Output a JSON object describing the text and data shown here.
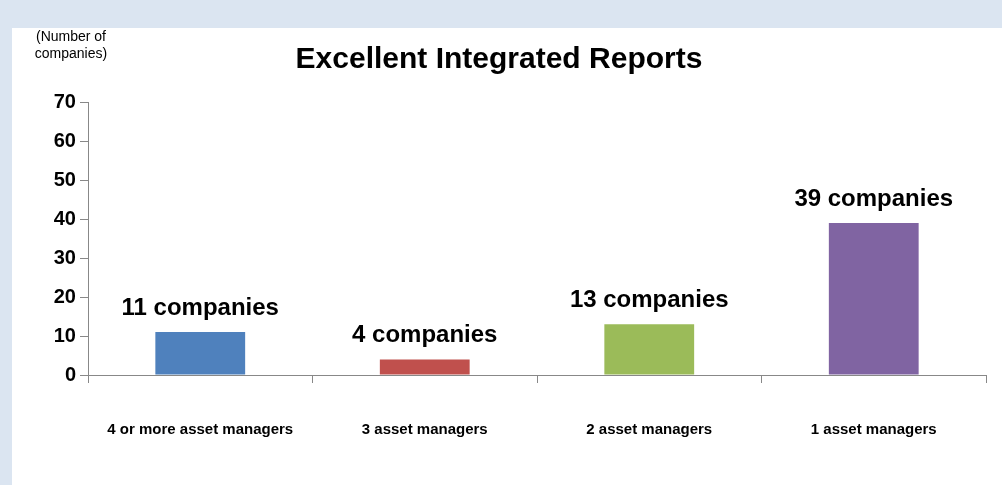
{
  "chart_data": {
    "type": "bar",
    "title": "Excellent Integrated Reports",
    "ylabel": "(Number of companies)",
    "categories": [
      "4 or more asset managers",
      "3 asset managers",
      "2 asset managers",
      "1 asset managers"
    ],
    "values": [
      11,
      4,
      13,
      39
    ],
    "colors": [
      "#4f81bd",
      "#c0504d",
      "#9bbb59",
      "#8064a2"
    ],
    "value_labels": [
      "11 companies",
      "4 companies",
      "13 companies",
      "39 companies"
    ],
    "ylim": [
      0,
      70
    ],
    "yticks": [
      0,
      10,
      20,
      30,
      40,
      50,
      60,
      70
    ],
    "grid": false,
    "legend": false
  }
}
